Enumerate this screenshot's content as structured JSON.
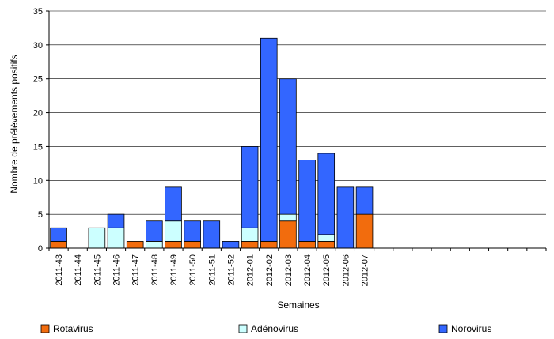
{
  "chart_data": {
    "type": "bar",
    "stacked": true,
    "title": "",
    "xlabel": "Semaines",
    "ylabel": "Nombre de prélèvements positifs",
    "ylim": [
      0,
      35
    ],
    "yticks": [
      0,
      5,
      10,
      15,
      20,
      25,
      30,
      35
    ],
    "grid": true,
    "legend_position": "bottom",
    "total_slots": 26,
    "categories": [
      "2011-43",
      "2011-44",
      "2011-45",
      "2011-46",
      "2011-47",
      "2011-48",
      "2011-49",
      "2011-50",
      "2011-51",
      "2011-52",
      "2012-01",
      "2012-02",
      "2012-03",
      "2012-04",
      "2012-05",
      "2012-06",
      "2012-07"
    ],
    "series": [
      {
        "name": "Rotavirus",
        "color": "#f26c0d",
        "values": [
          1,
          0,
          0,
          0,
          1,
          0,
          1,
          1,
          0,
          0,
          1,
          1,
          4,
          1,
          1,
          0,
          5
        ]
      },
      {
        "name": "Adénovirus",
        "color": "#ccffff",
        "values": [
          0,
          0,
          3,
          3,
          0,
          1,
          3,
          0,
          0,
          0,
          2,
          0,
          1,
          0,
          1,
          0,
          0
        ]
      },
      {
        "name": "Norovirus",
        "color": "#3366ff",
        "values": [
          2,
          0,
          0,
          2,
          0,
          3,
          5,
          3,
          4,
          1,
          12,
          30,
          20,
          12,
          12,
          9,
          4
        ]
      }
    ]
  }
}
